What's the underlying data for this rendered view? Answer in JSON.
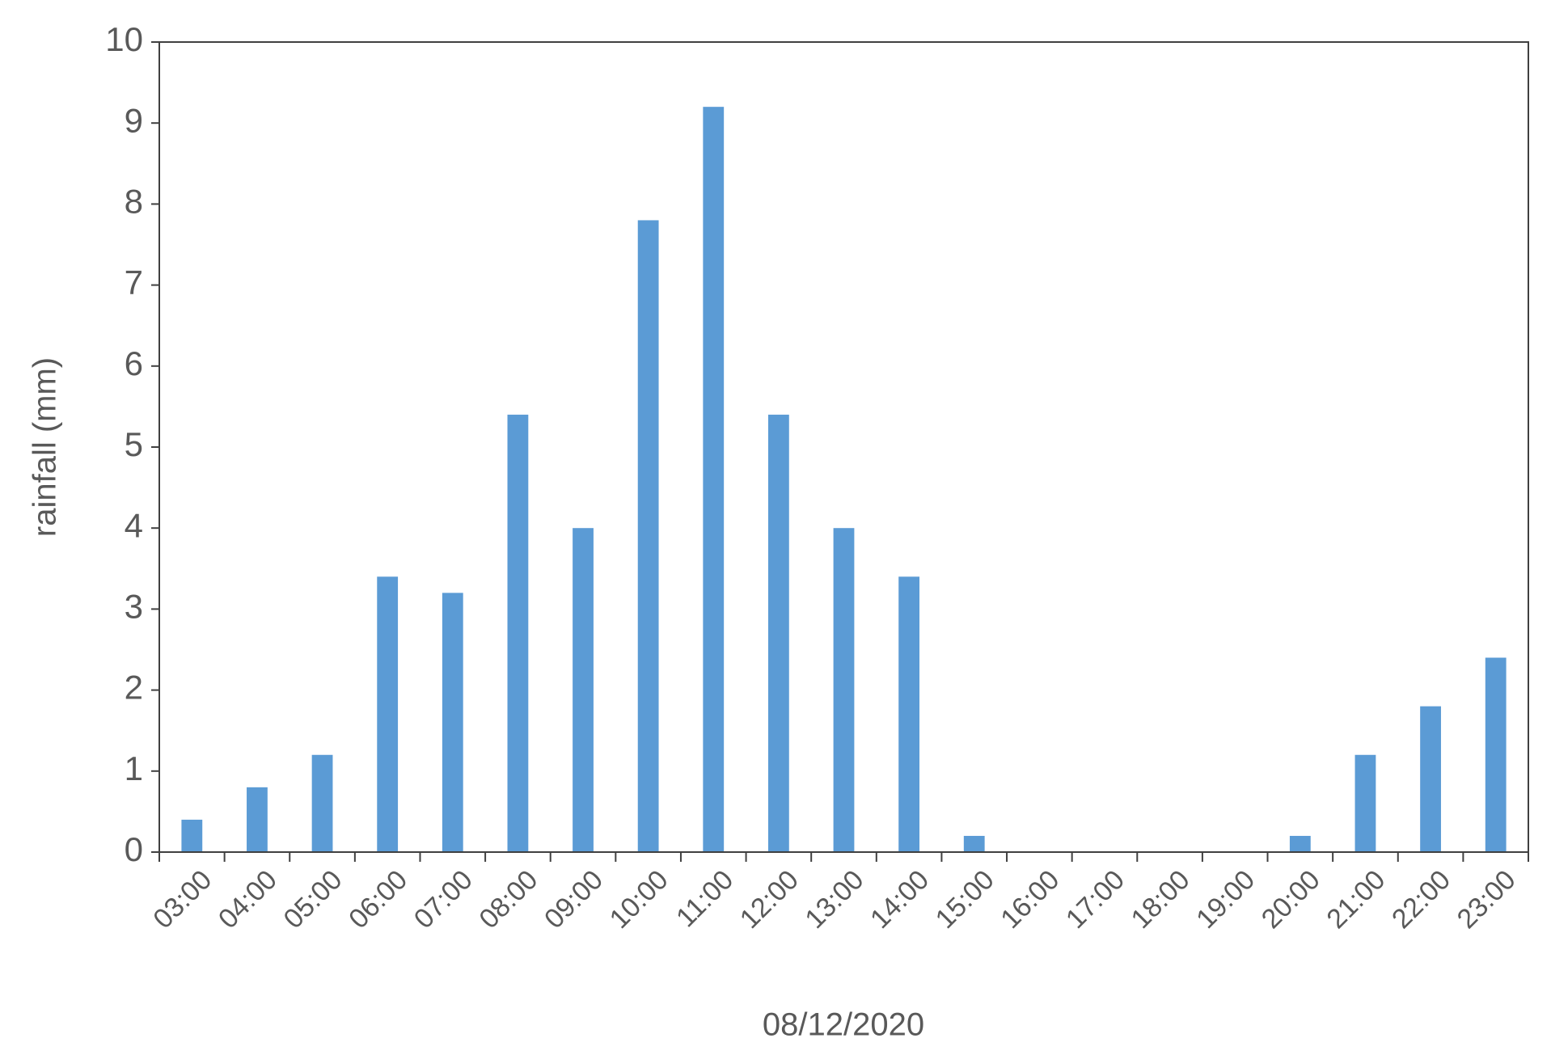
{
  "chart_data": {
    "type": "bar",
    "x_label": "08/12/2020",
    "y_label": "rainfall (mm)",
    "categories": [
      "03:00",
      "04:00",
      "05:00",
      "06:00",
      "07:00",
      "08:00",
      "09:00",
      "10:00",
      "11:00",
      "12:00",
      "13:00",
      "14:00",
      "15:00",
      "16:00",
      "17:00",
      "18:00",
      "19:00",
      "20:00",
      "21:00",
      "22:00",
      "23:00"
    ],
    "values": [
      0.4,
      0.8,
      1.2,
      3.4,
      3.2,
      5.4,
      4,
      7.8,
      9.2,
      5.4,
      4,
      3.4,
      0.2,
      0,
      0,
      0,
      0,
      0.2,
      1.2,
      1.8,
      2.4
    ],
    "color": "#5b9bd5",
    "ylim": [
      0,
      10
    ],
    "yticks": [
      0,
      1,
      2,
      3,
      4,
      5,
      6,
      7,
      8,
      9,
      10
    ],
    "grid": false
  }
}
